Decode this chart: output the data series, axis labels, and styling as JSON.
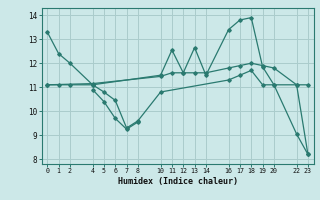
{
  "xlabel": "Humidex (Indice chaleur)",
  "bg_color": "#cce8e8",
  "grid_color": "#aacccc",
  "line_color": "#2a7a70",
  "xlim": [
    -0.5,
    23.5
  ],
  "ylim": [
    7.8,
    14.3
  ],
  "xticks": [
    0,
    1,
    2,
    4,
    5,
    6,
    7,
    8,
    10,
    11,
    12,
    13,
    14,
    16,
    17,
    18,
    19,
    20,
    22,
    23
  ],
  "yticks": [
    8,
    9,
    10,
    11,
    12,
    13,
    14
  ],
  "series": [
    {
      "x": [
        0,
        1,
        2,
        4,
        10,
        11,
        12,
        13,
        14,
        16,
        17,
        18,
        19,
        20,
        22,
        23
      ],
      "y": [
        13.3,
        12.4,
        12.0,
        11.1,
        11.5,
        12.55,
        11.6,
        12.65,
        11.5,
        13.4,
        13.8,
        13.9,
        11.85,
        11.1,
        9.05,
        8.2
      ]
    },
    {
      "x": [
        0,
        4,
        10,
        11,
        12,
        13,
        14,
        16,
        17,
        18,
        19,
        20,
        22,
        23
      ],
      "y": [
        11.1,
        11.15,
        11.45,
        11.6,
        11.6,
        11.6,
        11.6,
        11.8,
        11.9,
        12.0,
        11.9,
        11.8,
        11.1,
        11.1
      ]
    },
    {
      "x": [
        0,
        1,
        2,
        4,
        5,
        6,
        7,
        8,
        10,
        16,
        17,
        18,
        19,
        20,
        22,
        23
      ],
      "y": [
        11.1,
        11.1,
        11.1,
        11.1,
        10.8,
        10.45,
        9.3,
        9.6,
        10.8,
        11.3,
        11.5,
        11.7,
        11.1,
        11.1,
        11.1,
        8.2
      ]
    },
    {
      "x": [
        4,
        5,
        6,
        7,
        8
      ],
      "y": [
        10.9,
        10.4,
        9.7,
        9.25,
        9.55
      ]
    }
  ]
}
